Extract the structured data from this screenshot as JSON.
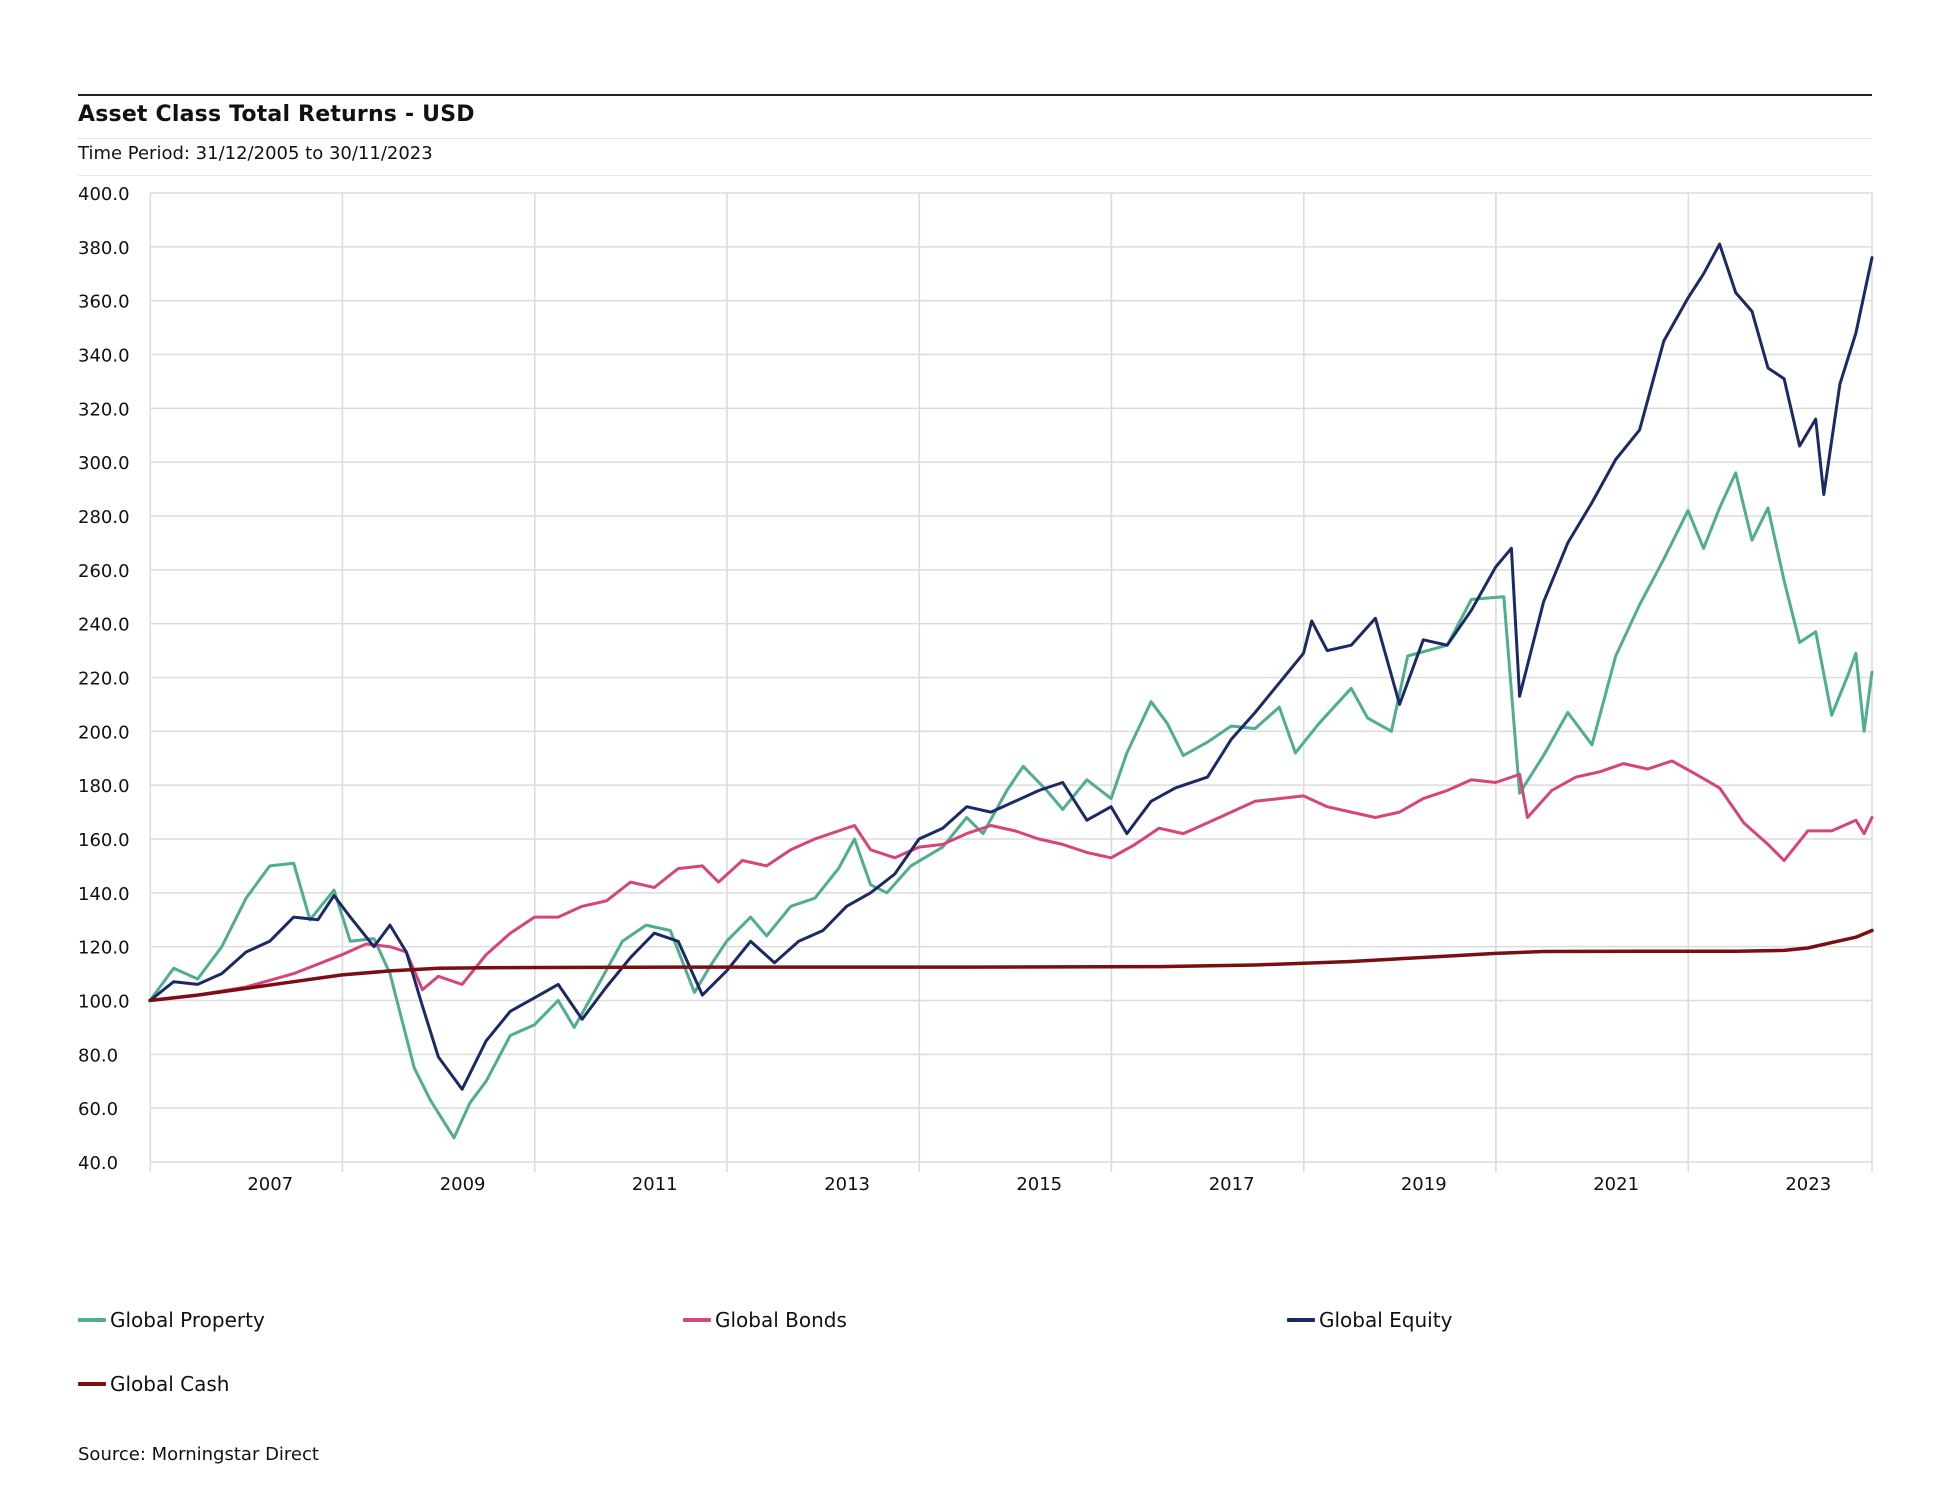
{
  "title": "Asset Class Total Returns - USD",
  "subtitle": "Time Period: 31/12/2005 to 30/11/2023",
  "source": "Source: Morningstar Direct",
  "chart_data": {
    "type": "line",
    "title": "Asset Class Total Returns - USD",
    "xlabel": "",
    "ylabel": "",
    "x_range": [
      "2005-12-31",
      "2023-11-30"
    ],
    "ylim": [
      40,
      400
    ],
    "y_ticks": [
      "40.0",
      "60.0",
      "80.0",
      "100.0",
      "120.0",
      "140.0",
      "160.0",
      "180.0",
      "200.0",
      "220.0",
      "240.0",
      "260.0",
      "280.0",
      "300.0",
      "320.0",
      "340.0",
      "360.0",
      "380.0",
      "400.0"
    ],
    "x_ticks": [
      "2007",
      "2009",
      "2011",
      "2013",
      "2015",
      "2017",
      "2019",
      "2021",
      "2023"
    ],
    "grid": true,
    "legend_position": "bottom",
    "series": [
      {
        "name": "Global Property",
        "color": "#4fae8d",
        "points": [
          [
            "2005-12",
            100
          ],
          [
            "2006-03",
            112
          ],
          [
            "2006-06",
            108
          ],
          [
            "2006-09",
            120
          ],
          [
            "2006-12",
            138
          ],
          [
            "2007-03",
            150
          ],
          [
            "2007-06",
            151
          ],
          [
            "2007-08",
            130
          ],
          [
            "2007-11",
            141
          ],
          [
            "2008-01",
            122
          ],
          [
            "2008-04",
            123
          ],
          [
            "2008-06",
            110
          ],
          [
            "2008-09",
            75
          ],
          [
            "2008-11",
            63
          ],
          [
            "2009-02",
            49
          ],
          [
            "2009-04",
            62
          ],
          [
            "2009-06",
            70
          ],
          [
            "2009-09",
            87
          ],
          [
            "2009-12",
            91
          ],
          [
            "2010-03",
            100
          ],
          [
            "2010-05",
            90
          ],
          [
            "2010-08",
            106
          ],
          [
            "2010-11",
            122
          ],
          [
            "2011-02",
            128
          ],
          [
            "2011-05",
            126
          ],
          [
            "2011-08",
            103
          ],
          [
            "2011-10",
            113
          ],
          [
            "2011-12",
            122
          ],
          [
            "2012-03",
            131
          ],
          [
            "2012-05",
            124
          ],
          [
            "2012-08",
            135
          ],
          [
            "2012-11",
            138
          ],
          [
            "2013-02",
            149
          ],
          [
            "2013-04",
            160
          ],
          [
            "2013-06",
            143
          ],
          [
            "2013-08",
            140
          ],
          [
            "2013-11",
            150
          ],
          [
            "2014-03",
            157
          ],
          [
            "2014-06",
            168
          ],
          [
            "2014-08",
            162
          ],
          [
            "2014-11",
            178
          ],
          [
            "2015-01",
            187
          ],
          [
            "2015-04",
            178
          ],
          [
            "2015-06",
            171
          ],
          [
            "2015-09",
            182
          ],
          [
            "2015-12",
            175
          ],
          [
            "2016-02",
            192
          ],
          [
            "2016-05",
            211
          ],
          [
            "2016-07",
            203
          ],
          [
            "2016-09",
            191
          ],
          [
            "2016-12",
            196
          ],
          [
            "2017-03",
            202
          ],
          [
            "2017-06",
            201
          ],
          [
            "2017-09",
            209
          ],
          [
            "2017-11",
            192
          ],
          [
            "2018-02",
            203
          ],
          [
            "2018-06",
            216
          ],
          [
            "2018-08",
            205
          ],
          [
            "2018-11",
            200
          ],
          [
            "2019-01",
            228
          ],
          [
            "2019-06",
            232
          ],
          [
            "2019-09",
            249
          ],
          [
            "2020-01",
            250
          ],
          [
            "2020-03",
            177
          ],
          [
            "2020-06",
            191
          ],
          [
            "2020-09",
            207
          ],
          [
            "2020-12",
            195
          ],
          [
            "2021-03",
            228
          ],
          [
            "2021-06",
            247
          ],
          [
            "2021-09",
            264
          ],
          [
            "2021-12",
            282
          ],
          [
            "2022-02",
            268
          ],
          [
            "2022-04",
            283
          ],
          [
            "2022-06",
            296
          ],
          [
            "2022-08",
            271
          ],
          [
            "2022-10",
            283
          ],
          [
            "2022-12",
            256
          ],
          [
            "2023-02",
            233
          ],
          [
            "2023-04",
            237
          ],
          [
            "2023-06",
            206
          ],
          [
            "2023-08",
            221
          ],
          [
            "2023-09",
            229
          ],
          [
            "2023-10",
            200
          ],
          [
            "2023-11",
            222
          ]
        ]
      },
      {
        "name": "Global Bonds",
        "color": "#d6457a",
        "points": [
          [
            "2005-12",
            100
          ],
          [
            "2006-06",
            102
          ],
          [
            "2006-12",
            105
          ],
          [
            "2007-06",
            110
          ],
          [
            "2007-12",
            117
          ],
          [
            "2008-03",
            121
          ],
          [
            "2008-06",
            120
          ],
          [
            "2008-08",
            118
          ],
          [
            "2008-10",
            104
          ],
          [
            "2008-12",
            109
          ],
          [
            "2009-03",
            106
          ],
          [
            "2009-06",
            117
          ],
          [
            "2009-09",
            125
          ],
          [
            "2009-12",
            131
          ],
          [
            "2010-03",
            131
          ],
          [
            "2010-06",
            135
          ],
          [
            "2010-09",
            137
          ],
          [
            "2010-12",
            144
          ],
          [
            "2011-03",
            142
          ],
          [
            "2011-06",
            149
          ],
          [
            "2011-09",
            150
          ],
          [
            "2011-11",
            144
          ],
          [
            "2012-02",
            152
          ],
          [
            "2012-05",
            150
          ],
          [
            "2012-08",
            156
          ],
          [
            "2012-11",
            160
          ],
          [
            "2013-02",
            163
          ],
          [
            "2013-04",
            165
          ],
          [
            "2013-06",
            156
          ],
          [
            "2013-09",
            153
          ],
          [
            "2013-12",
            157
          ],
          [
            "2014-03",
            158
          ],
          [
            "2014-06",
            162
          ],
          [
            "2014-09",
            165
          ],
          [
            "2014-12",
            163
          ],
          [
            "2015-03",
            160
          ],
          [
            "2015-06",
            158
          ],
          [
            "2015-09",
            155
          ],
          [
            "2015-12",
            153
          ],
          [
            "2016-03",
            158
          ],
          [
            "2016-06",
            164
          ],
          [
            "2016-09",
            162
          ],
          [
            "2016-12",
            166
          ],
          [
            "2017-03",
            170
          ],
          [
            "2017-06",
            174
          ],
          [
            "2017-09",
            175
          ],
          [
            "2017-12",
            176
          ],
          [
            "2018-03",
            172
          ],
          [
            "2018-06",
            170
          ],
          [
            "2018-09",
            168
          ],
          [
            "2018-12",
            170
          ],
          [
            "2019-03",
            175
          ],
          [
            "2019-06",
            178
          ],
          [
            "2019-09",
            182
          ],
          [
            "2019-12",
            181
          ],
          [
            "2020-03",
            184
          ],
          [
            "2020-04",
            168
          ],
          [
            "2020-07",
            178
          ],
          [
            "2020-10",
            183
          ],
          [
            "2021-01",
            185
          ],
          [
            "2021-04",
            188
          ],
          [
            "2021-07",
            186
          ],
          [
            "2021-10",
            189
          ],
          [
            "2022-01",
            184
          ],
          [
            "2022-04",
            179
          ],
          [
            "2022-07",
            166
          ],
          [
            "2022-10",
            158
          ],
          [
            "2022-12",
            152
          ],
          [
            "2023-03",
            163
          ],
          [
            "2023-06",
            163
          ],
          [
            "2023-09",
            167
          ],
          [
            "2023-10",
            162
          ],
          [
            "2023-11",
            168
          ]
        ]
      },
      {
        "name": "Global Equity",
        "color": "#1b2a66",
        "points": [
          [
            "2005-12",
            100
          ],
          [
            "2006-03",
            107
          ],
          [
            "2006-06",
            106
          ],
          [
            "2006-09",
            110
          ],
          [
            "2006-12",
            118
          ],
          [
            "2007-03",
            122
          ],
          [
            "2007-06",
            131
          ],
          [
            "2007-09",
            130
          ],
          [
            "2007-11",
            139
          ],
          [
            "2008-01",
            131
          ],
          [
            "2008-04",
            120
          ],
          [
            "2008-06",
            128
          ],
          [
            "2008-08",
            118
          ],
          [
            "2008-10",
            98
          ],
          [
            "2008-12",
            79
          ],
          [
            "2009-03",
            67
          ],
          [
            "2009-06",
            85
          ],
          [
            "2009-09",
            96
          ],
          [
            "2009-12",
            101
          ],
          [
            "2010-03",
            106
          ],
          [
            "2010-06",
            93
          ],
          [
            "2010-09",
            105
          ],
          [
            "2010-12",
            116
          ],
          [
            "2011-03",
            125
          ],
          [
            "2011-06",
            122
          ],
          [
            "2011-09",
            102
          ],
          [
            "2011-12",
            111
          ],
          [
            "2012-03",
            122
          ],
          [
            "2012-06",
            114
          ],
          [
            "2012-09",
            122
          ],
          [
            "2012-12",
            126
          ],
          [
            "2013-03",
            135
          ],
          [
            "2013-06",
            140
          ],
          [
            "2013-09",
            147
          ],
          [
            "2013-12",
            160
          ],
          [
            "2014-03",
            164
          ],
          [
            "2014-06",
            172
          ],
          [
            "2014-09",
            170
          ],
          [
            "2014-12",
            174
          ],
          [
            "2015-03",
            178
          ],
          [
            "2015-06",
            181
          ],
          [
            "2015-09",
            167
          ],
          [
            "2015-12",
            172
          ],
          [
            "2016-02",
            162
          ],
          [
            "2016-05",
            174
          ],
          [
            "2016-08",
            179
          ],
          [
            "2016-12",
            183
          ],
          [
            "2017-03",
            197
          ],
          [
            "2017-06",
            207
          ],
          [
            "2017-09",
            218
          ],
          [
            "2017-12",
            229
          ],
          [
            "2018-01",
            241
          ],
          [
            "2018-03",
            230
          ],
          [
            "2018-06",
            232
          ],
          [
            "2018-09",
            242
          ],
          [
            "2018-12",
            210
          ],
          [
            "2019-03",
            234
          ],
          [
            "2019-06",
            232
          ],
          [
            "2019-09",
            245
          ],
          [
            "2019-12",
            261
          ],
          [
            "2020-02",
            268
          ],
          [
            "2020-03",
            213
          ],
          [
            "2020-06",
            248
          ],
          [
            "2020-09",
            270
          ],
          [
            "2020-12",
            285
          ],
          [
            "2021-03",
            301
          ],
          [
            "2021-06",
            312
          ],
          [
            "2021-09",
            345
          ],
          [
            "2021-12",
            361
          ],
          [
            "2022-02",
            370
          ],
          [
            "2022-04",
            381
          ],
          [
            "2022-06",
            363
          ],
          [
            "2022-08",
            356
          ],
          [
            "2022-10",
            335
          ],
          [
            "2022-12",
            331
          ],
          [
            "2023-02",
            306
          ],
          [
            "2023-04",
            316
          ],
          [
            "2023-05",
            288
          ],
          [
            "2023-07",
            329
          ],
          [
            "2023-09",
            348
          ],
          [
            "2023-11",
            376
          ]
        ]
      },
      {
        "name": "Global Cash",
        "color": "#7a0f12",
        "points": [
          [
            "2005-12",
            100
          ],
          [
            "2006-06",
            102
          ],
          [
            "2006-12",
            104.5
          ],
          [
            "2007-06",
            107
          ],
          [
            "2007-12",
            109.5
          ],
          [
            "2008-06",
            111
          ],
          [
            "2008-12",
            112
          ],
          [
            "2009-06",
            112.2
          ],
          [
            "2010-06",
            112.3
          ],
          [
            "2011-06",
            112.4
          ],
          [
            "2012-06",
            112.4
          ],
          [
            "2013-06",
            112.4
          ],
          [
            "2014-06",
            112.4
          ],
          [
            "2015-06",
            112.5
          ],
          [
            "2016-06",
            112.6
          ],
          [
            "2017-06",
            113.2
          ],
          [
            "2018-06",
            114.5
          ],
          [
            "2019-06",
            116.5
          ],
          [
            "2019-12",
            117.5
          ],
          [
            "2020-06",
            118.2
          ],
          [
            "2021-06",
            118.3
          ],
          [
            "2022-06",
            118.3
          ],
          [
            "2022-12",
            118.6
          ],
          [
            "2023-03",
            119.5
          ],
          [
            "2023-06",
            121.5
          ],
          [
            "2023-09",
            123.5
          ],
          [
            "2023-11",
            126
          ]
        ]
      }
    ]
  }
}
